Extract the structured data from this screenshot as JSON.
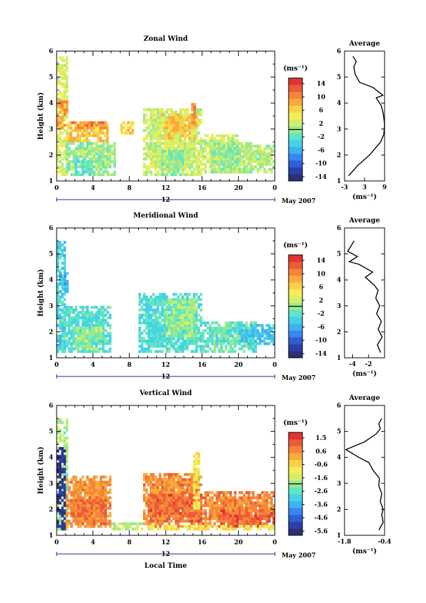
{
  "figure": {
    "xlabel": "Local Time",
    "colorbar_unit": "(ms⁻¹)",
    "date_label": "May 2007",
    "day_label": "12",
    "profile_title": "Average",
    "profile_unit": "(ms⁻¹)",
    "ylabel": "Height (km)"
  },
  "chart_data": [
    {
      "type": "heatmap",
      "title": "Zonal Wind",
      "ylabel": "Height (km)",
      "xlabel": "",
      "x_ticks": [
        "0",
        "4",
        "8",
        "12",
        "16",
        "20",
        "0"
      ],
      "y_ticks": [
        "1",
        "2",
        "3",
        "4",
        "5",
        "6"
      ],
      "xlim": [
        0,
        24
      ],
      "ylim": [
        1,
        6
      ],
      "colorbar": {
        "ticks": [
          "14",
          "10",
          "6",
          "2",
          "-2",
          "-6",
          "-10",
          "-14"
        ],
        "range": [
          -16,
          16
        ]
      },
      "description_values": {
        "blobs": [
          {
            "x": [
              0,
              1.2
            ],
            "y": [
              1.2,
              5.8
            ],
            "v": 3
          },
          {
            "x": [
              0,
              1.2
            ],
            "y": [
              3.0,
              4.2
            ],
            "v": 9
          },
          {
            "x": [
              1.2,
              5.5
            ],
            "y": [
              2.5,
              3.3
            ],
            "v": 7
          },
          {
            "x": [
              1.5,
              5.5
            ],
            "y": [
              3.0,
              3.3
            ],
            "v": 10
          },
          {
            "x": [
              1.0,
              6.5
            ],
            "y": [
              1.2,
              2.5
            ],
            "v": 0
          },
          {
            "x": [
              2.0,
              4.5
            ],
            "y": [
              1.2,
              1.8
            ],
            "v": -2
          },
          {
            "x": [
              7.0,
              8.5
            ],
            "y": [
              2.8,
              3.3
            ],
            "v": 6
          },
          {
            "x": [
              9.5,
              16.0
            ],
            "y": [
              1.2,
              3.8
            ],
            "v": 2
          },
          {
            "x": [
              11.5,
              15.5
            ],
            "y": [
              2.6,
              3.6
            ],
            "v": 7
          },
          {
            "x": [
              11.5,
              14.0
            ],
            "y": [
              1.2,
              2.2
            ],
            "v": -1
          },
          {
            "x": [
              14.8,
              15.2
            ],
            "y": [
              3.2,
              4.0
            ],
            "v": 10
          },
          {
            "x": [
              16.0,
              20.0
            ],
            "y": [
              1.3,
              2.8
            ],
            "v": 2
          },
          {
            "x": [
              17.0,
              21.5
            ],
            "y": [
              1.3,
              2.5
            ],
            "v": 0
          },
          {
            "x": [
              20.0,
              24.0
            ],
            "y": [
              1.3,
              2.4
            ],
            "v": 1
          }
        ]
      },
      "profile": {
        "xlim": [
          -3,
          9
        ],
        "x_ticks": [
          "-3",
          "3",
          "9"
        ],
        "y_ticks": [
          "1",
          "2",
          "3",
          "4",
          "5",
          "6"
        ],
        "x": [
          -1.8,
          1.0,
          4.5,
          7.8,
          8.8,
          9.0,
          8.6,
          8.0,
          6.5,
          8.5,
          5.5,
          1.5,
          0.2,
          -0.2,
          0.5,
          -0.5
        ],
        "y": [
          1.2,
          1.6,
          2.0,
          2.5,
          2.8,
          3.2,
          3.6,
          3.9,
          4.2,
          4.3,
          4.6,
          4.8,
          5.1,
          5.4,
          5.6,
          5.8
        ]
      }
    },
    {
      "type": "heatmap",
      "title": "Meridional Wind",
      "ylabel": "Height (km)",
      "xlabel": "",
      "x_ticks": [
        "0",
        "4",
        "8",
        "12",
        "16",
        "20",
        "0"
      ],
      "y_ticks": [
        "1",
        "2",
        "3",
        "4",
        "5",
        "6"
      ],
      "xlim": [
        0,
        24
      ],
      "ylim": [
        1,
        6
      ],
      "colorbar": {
        "ticks": [
          "14",
          "10",
          "6",
          "2",
          "-2",
          "-6",
          "-10",
          "-14"
        ],
        "range": [
          -16,
          16
        ]
      },
      "description_values": {
        "blobs": [
          {
            "x": [
              0,
              0.8
            ],
            "y": [
              1.2,
              5.5
            ],
            "v": -4
          },
          {
            "x": [
              0.3,
              1.2
            ],
            "y": [
              3.5,
              4.3
            ],
            "v": -6
          },
          {
            "x": [
              0.5,
              6.0
            ],
            "y": [
              1.2,
              3.0
            ],
            "v": -3
          },
          {
            "x": [
              2.0,
              5.0
            ],
            "y": [
              1.3,
              2.2
            ],
            "v": 0
          },
          {
            "x": [
              9.0,
              16.0
            ],
            "y": [
              1.2,
              3.5
            ],
            "v": -3
          },
          {
            "x": [
              12.0,
              15.5
            ],
            "y": [
              1.8,
              3.3
            ],
            "v": 0
          },
          {
            "x": [
              16.0,
              22.0
            ],
            "y": [
              1.2,
              2.4
            ],
            "v": -2
          },
          {
            "x": [
              20.0,
              24.0
            ],
            "y": [
              1.5,
              2.3
            ],
            "v": -5
          }
        ]
      },
      "profile": {
        "xlim": [
          -5,
          0
        ],
        "x_ticks": [
          "-4",
          "-2"
        ],
        "y_ticks": [
          "1",
          "2",
          "3",
          "4",
          "5",
          "6"
        ],
        "x": [
          -0.5,
          -0.9,
          -0.3,
          -0.8,
          -0.4,
          -1.0,
          -0.6,
          -1.1,
          -0.8,
          -1.3,
          -2.4,
          -1.5,
          -3.2,
          -4.4,
          -3.4,
          -4.6,
          -4.2,
          -3.8
        ],
        "y": [
          1.2,
          1.5,
          1.8,
          2.1,
          2.4,
          2.7,
          3.0,
          3.3,
          3.6,
          3.8,
          4.1,
          4.3,
          4.6,
          4.7,
          4.9,
          5.1,
          5.3,
          5.5
        ]
      }
    },
    {
      "type": "heatmap",
      "title": "Vertical Wind",
      "ylabel": "Height (km)",
      "xlabel": "Local Time",
      "x_ticks": [
        "0",
        "4",
        "8",
        "12",
        "16",
        "20",
        "0"
      ],
      "y_ticks": [
        "1",
        "2",
        "3",
        "4",
        "5",
        "6"
      ],
      "xlim": [
        0,
        24
      ],
      "ylim": [
        1,
        6
      ],
      "colorbar": {
        "ticks": [
          "1.5",
          "0.6",
          "-0.6",
          "-1.6",
          "-2.6",
          "-3.6",
          "-4.6",
          "-5.6"
        ],
        "range": [
          -6.0,
          2.0
        ]
      },
      "description_values": {
        "blobs": [
          {
            "x": [
              0,
              1.2
            ],
            "y": [
              1.2,
              5.5
            ],
            "v": -1.8
          },
          {
            "x": [
              0,
              1.0
            ],
            "y": [
              1.2,
              4.4
            ],
            "v": -5.5
          },
          {
            "x": [
              1.0,
              6.0
            ],
            "y": [
              1.3,
              3.3
            ],
            "v": 0.4
          },
          {
            "x": [
              1.5,
              5.5
            ],
            "y": [
              1.4,
              2.5
            ],
            "v": 0.9
          },
          {
            "x": [
              6.0,
              9.5
            ],
            "y": [
              1.2,
              1.5
            ],
            "v": -1.6
          },
          {
            "x": [
              9.5,
              16.0
            ],
            "y": [
              1.3,
              3.4
            ],
            "v": 0.5
          },
          {
            "x": [
              10.0,
              16.0
            ],
            "y": [
              1.5,
              2.6
            ],
            "v": 1.0
          },
          {
            "x": [
              15.0,
              15.6
            ],
            "y": [
              2.0,
              4.2
            ],
            "v": -0.8
          },
          {
            "x": [
              16.0,
              24.0
            ],
            "y": [
              1.3,
              2.7
            ],
            "v": 0.6
          },
          {
            "x": [
              18.0,
              24.0
            ],
            "y": [
              1.3,
              2.0
            ],
            "v": 1.1
          },
          {
            "x": [
              10.0,
              24.0
            ],
            "y": [
              1.2,
              1.4
            ],
            "v": -0.8
          }
        ]
      },
      "profile": {
        "xlim": [
          -1.8,
          -0.4
        ],
        "x_ticks": [
          "-1.8",
          "-0.4"
        ],
        "y_ticks": [
          "1",
          "2",
          "3",
          "4",
          "5",
          "6"
        ],
        "x": [
          -0.6,
          -0.45,
          -0.5,
          -0.45,
          -0.55,
          -0.5,
          -0.6,
          -0.58,
          -0.8,
          -0.95,
          -1.3,
          -1.75,
          -1.1,
          -0.7,
          -0.55,
          -0.6,
          -0.5
        ],
        "y": [
          1.2,
          1.5,
          1.8,
          2.0,
          2.3,
          2.6,
          2.9,
          3.2,
          3.5,
          3.8,
          4.0,
          4.3,
          4.6,
          4.9,
          5.1,
          5.3,
          5.5
        ]
      }
    }
  ]
}
